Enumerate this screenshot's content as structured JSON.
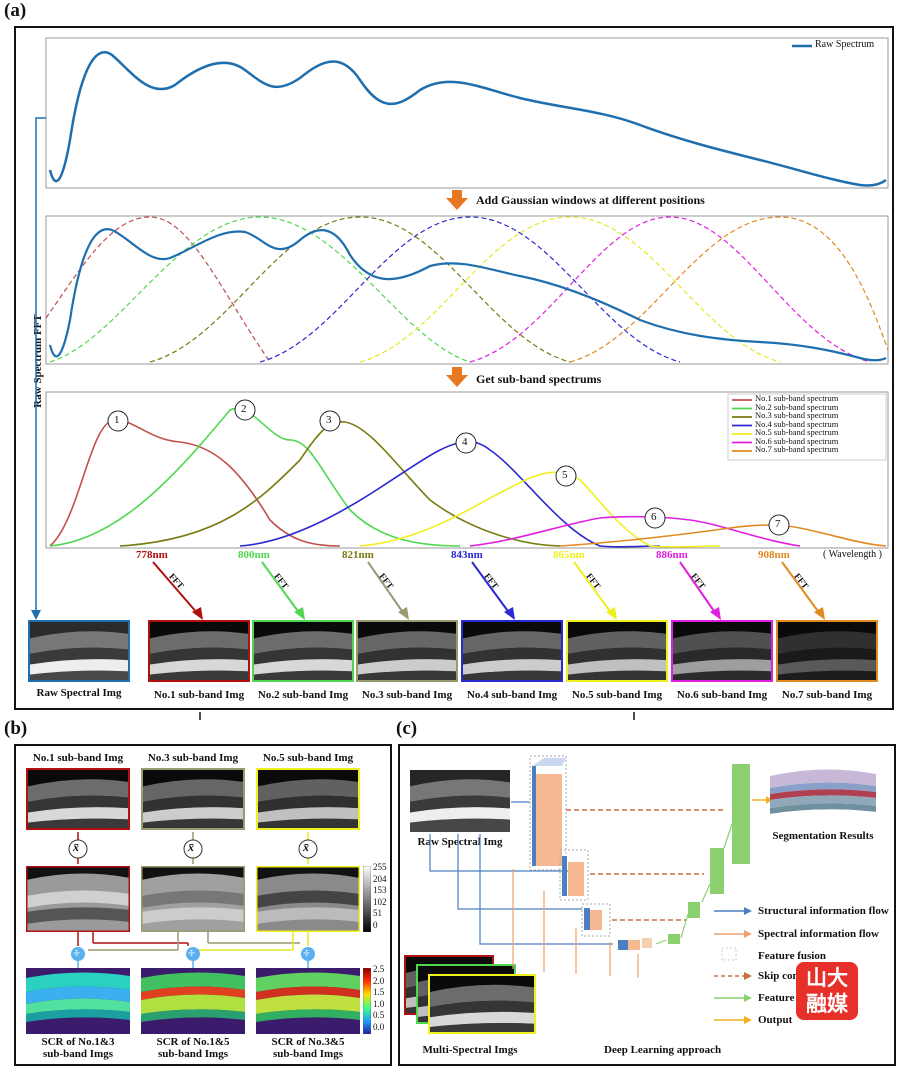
{
  "panel_a": {
    "label": "(a)",
    "legend_raw": "Raw Spectrum",
    "step1": "Add Gaussian windows at different positions",
    "step2": "Get sub-band spectrums",
    "side_label": "Raw Spectrum FFT",
    "wavelength_label": "( Wavelength )",
    "sub_legend": [
      "No.1 sub-band spectrum",
      "No.2 sub-band spectrum",
      "No.3 sub-band spectrum",
      "No.4 sub-band spectrum",
      "No.5 sub-band spectrum",
      "No.6 sub-band spectrum",
      "No.7 sub-band spectrum"
    ],
    "band_colors": [
      "#c0504d",
      "#4fd84f",
      "#7a7a10",
      "#2a2ad0",
      "#f0f020",
      "#e020e0",
      "#e08a20"
    ],
    "wavelengths": [
      "778nm",
      "800nm",
      "821nm",
      "843nm",
      "865nm",
      "886nm",
      "908nm"
    ],
    "fft_label": "FFT",
    "peak_numbers": [
      "1",
      "2",
      "3",
      "4",
      "5",
      "6",
      "7"
    ],
    "raw_img_label": "Raw Spectral Img",
    "sub_img_labels": [
      "No.1 sub-band Img",
      "No.2 sub-band Img",
      "No.3 sub-band Img",
      "No.4 sub-band Img",
      "No.5 sub-band Img",
      "No.6 sub-band Img",
      "No.7 sub-band Img"
    ]
  },
  "panel_b": {
    "label": "(b)",
    "top_labels": [
      "No.1 sub-band Img",
      "No.3 sub-band Img",
      "No.5 sub-band Img"
    ],
    "op_symbol": "x̄",
    "divide_symbol": "÷",
    "gray_ticks": [
      "255",
      "204",
      "153",
      "102",
      "51",
      "0"
    ],
    "color_ticks": [
      "2.5",
      "2.0",
      "1.5",
      "1.0",
      "0.5",
      "0.0"
    ],
    "bottom_labels": [
      [
        "SCR of No.1&3",
        "sub-band Imgs"
      ],
      [
        "SCR of No.1&5",
        "sub-band Imgs"
      ],
      [
        "SCR of No.3&5",
        "sub-band Imgs"
      ]
    ]
  },
  "panel_c": {
    "label": "(c)",
    "raw_img_label": "Raw Spectral Img",
    "multi_img_label": "Multi-Spectral Imgs",
    "seg_label": "Segmentation Results",
    "approach_label": "Deep Learning approach",
    "legend": [
      "Structural information flow",
      "Spectral information flow",
      "Feature fusion",
      "Skip con",
      "Feature",
      "Output"
    ],
    "watermark": [
      "山大",
      "融媒"
    ]
  }
}
